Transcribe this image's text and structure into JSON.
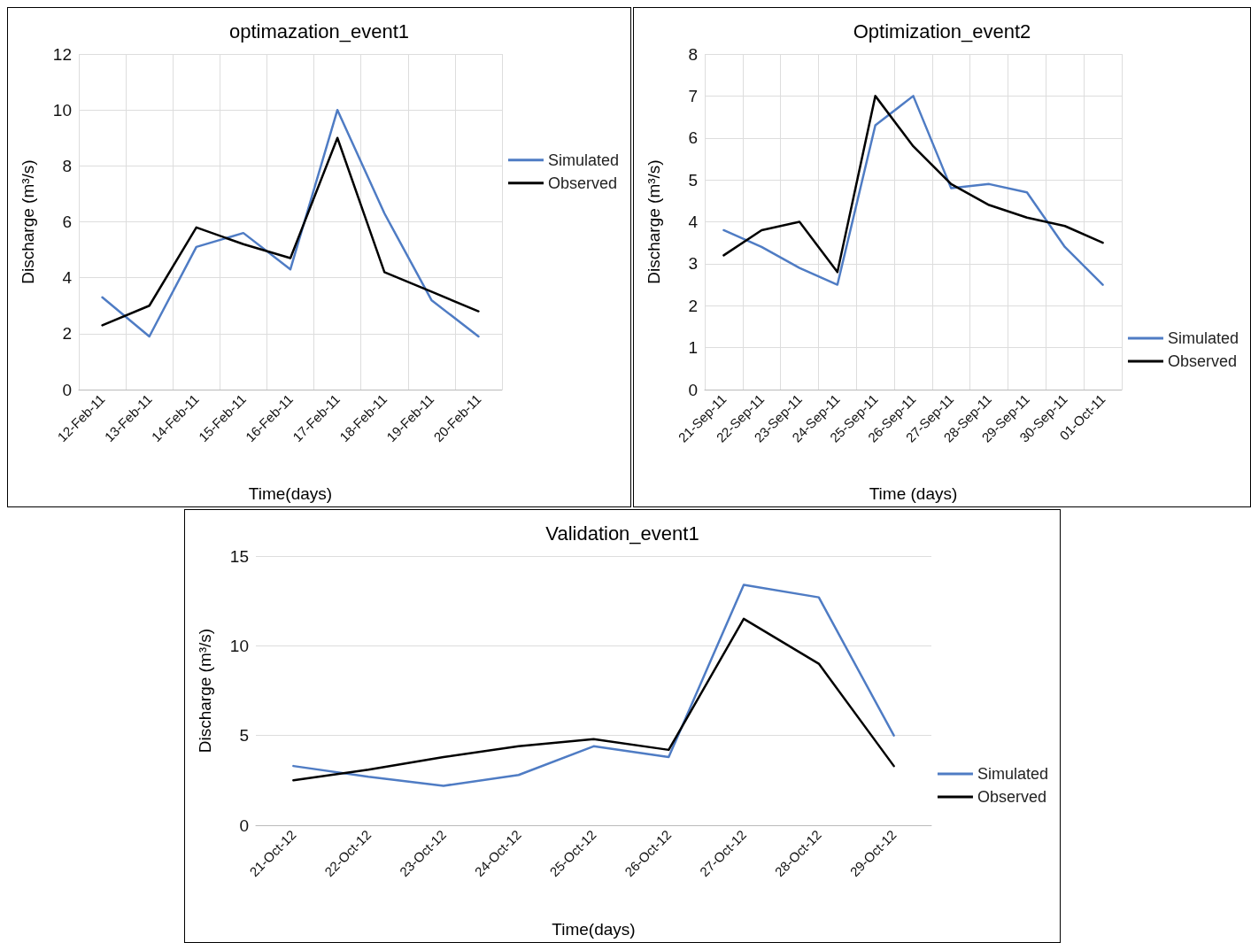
{
  "chart_data": [
    {
      "type": "line",
      "title": "optimazation_event1",
      "xlabel": "Time(days)",
      "ylabel": "Discharge (m³/s)",
      "categories": [
        "12-Feb-11",
        "13-Feb-11",
        "14-Feb-11",
        "15-Feb-11",
        "16-Feb-11",
        "17-Feb-11",
        "18-Feb-11",
        "19-Feb-11",
        "20-Feb-11"
      ],
      "series": [
        {
          "name": "Simulated",
          "color": "#4f7cc4",
          "values": [
            3.3,
            1.9,
            5.1,
            5.6,
            4.3,
            10,
            6.3,
            3.2,
            1.9
          ]
        },
        {
          "name": "Observed",
          "color": "#000000",
          "values": [
            2.3,
            3.0,
            5.8,
            5.2,
            4.7,
            9.0,
            4.2,
            3.5,
            2.8
          ]
        }
      ],
      "ylim": [
        0,
        12
      ],
      "yticks": [
        0,
        2,
        4,
        6,
        8,
        10,
        12
      ],
      "grid": true,
      "legend": "right",
      "marker": "none",
      "line_style": "solid"
    },
    {
      "type": "line",
      "title": "Optimization_event2",
      "xlabel": "Time (days)",
      "ylabel": "Discharge (m³/s)",
      "categories": [
        "21-Sep-11",
        "22-Sep-11",
        "23-Sep-11",
        "24-Sep-11",
        "25-Sep-11",
        "26-Sep-11",
        "27-Sep-11",
        "28-Sep-11",
        "29-Sep-11",
        "30-Sep-11",
        "01-Oct-11"
      ],
      "series": [
        {
          "name": "Simulated",
          "color": "#4f7cc4",
          "values": [
            3.8,
            3.4,
            2.9,
            2.5,
            6.3,
            7.0,
            4.8,
            4.9,
            4.7,
            3.4,
            2.5
          ]
        },
        {
          "name": "Observed",
          "color": "#000000",
          "values": [
            3.2,
            3.8,
            4.0,
            2.8,
            7.0,
            5.8,
            4.9,
            4.4,
            4.1,
            3.9,
            3.5
          ]
        }
      ],
      "ylim": [
        0,
        8
      ],
      "yticks": [
        0,
        1,
        2,
        3,
        4,
        5,
        6,
        7,
        8
      ],
      "grid": true,
      "legend": "bottom right",
      "marker": "none",
      "line_style": "solid"
    },
    {
      "type": "line",
      "title": "Validation_event1",
      "xlabel": "Time(days)",
      "ylabel": "Discharge (m³/s)",
      "categories": [
        "21-Oct-12",
        "22-Oct-12",
        "23-Oct-12",
        "24-Oct-12",
        "25-Oct-12",
        "26-Oct-12",
        "27-Oct-12",
        "28-Oct-12",
        "29-Oct-12"
      ],
      "series": [
        {
          "name": "Simulated",
          "color": "#4f7cc4",
          "values": [
            3.3,
            2.7,
            2.2,
            2.8,
            4.4,
            3.8,
            13.4,
            12.7,
            5.0
          ]
        },
        {
          "name": "Observed",
          "color": "#000000",
          "values": [
            2.5,
            3.1,
            3.8,
            4.4,
            4.8,
            4.2,
            11.5,
            9.0,
            3.3
          ]
        }
      ],
      "ylim": [
        0,
        15
      ],
      "yticks": [
        0,
        5,
        10,
        15
      ],
      "grid": "y",
      "legend": "bottom right",
      "marker": "none",
      "line_style": "solid"
    }
  ]
}
